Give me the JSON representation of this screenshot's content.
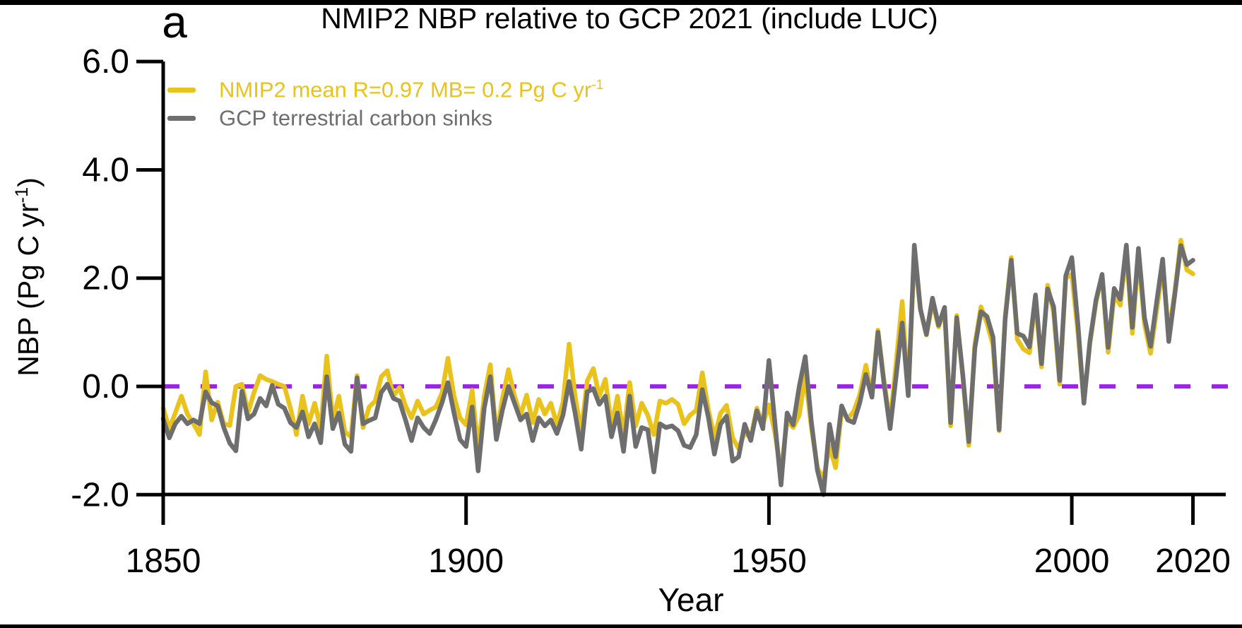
{
  "panel_label": "a",
  "legend": {
    "items": [
      {
        "label": "NMIP2 mean R=0.97 MB= 0.2 Pg C yr",
        "sup": "-1",
        "color": "#E9C31B"
      },
      {
        "label": "GCP terrestrial carbon sinks",
        "sup": "",
        "color": "#6E6E6E"
      }
    ]
  },
  "axes": {
    "ylabel_pre": "NBP (Pg C yr",
    "ylabel_sup": "-1",
    "ylabel_post": ")",
    "xlabel": "Year"
  },
  "colors": {
    "nmip2": "#E9C31B",
    "gcp": "#6E6E6E",
    "zero_line": "#A020F0",
    "axis": "#000000",
    "background": "#FFFFFF"
  },
  "chart_data": {
    "type": "line",
    "title": "NMIP2 NBP relative to GCP 2021 (include LUC)",
    "xlabel": "Year",
    "ylabel": "NBP (Pg C yr-1)",
    "ylim": [
      -2.0,
      6.0
    ],
    "xlim": [
      1850,
      2025
    ],
    "grid": false,
    "legend_position": "top-left",
    "yticks": [
      -2,
      0,
      2,
      4,
      6
    ],
    "ytick_labels": [
      "-2.0",
      "0.0",
      "2.0",
      "4.0",
      "6.0"
    ],
    "xticks": [
      1850,
      1900,
      1950,
      2000,
      2020
    ],
    "xtick_labels": [
      "1850",
      "1900",
      "1950",
      "2000",
      "2020"
    ],
    "zero_line": {
      "value": 0.0,
      "color": "#A020F0",
      "style": "dashed"
    },
    "x": [
      1850,
      1851,
      1852,
      1853,
      1854,
      1855,
      1856,
      1857,
      1858,
      1859,
      1860,
      1861,
      1862,
      1863,
      1864,
      1865,
      1866,
      1867,
      1868,
      1869,
      1870,
      1871,
      1872,
      1873,
      1874,
      1875,
      1876,
      1877,
      1878,
      1879,
      1880,
      1881,
      1882,
      1883,
      1884,
      1885,
      1886,
      1887,
      1888,
      1889,
      1890,
      1891,
      1892,
      1893,
      1894,
      1895,
      1896,
      1897,
      1898,
      1899,
      1900,
      1901,
      1902,
      1903,
      1904,
      1905,
      1906,
      1907,
      1908,
      1909,
      1910,
      1911,
      1912,
      1913,
      1914,
      1915,
      1916,
      1917,
      1918,
      1919,
      1920,
      1921,
      1922,
      1923,
      1924,
      1925,
      1926,
      1927,
      1928,
      1929,
      1930,
      1931,
      1932,
      1933,
      1934,
      1935,
      1936,
      1937,
      1938,
      1939,
      1940,
      1941,
      1942,
      1943,
      1944,
      1945,
      1946,
      1947,
      1948,
      1949,
      1950,
      1951,
      1952,
      1953,
      1954,
      1955,
      1956,
      1957,
      1958,
      1959,
      1960,
      1961,
      1962,
      1963,
      1964,
      1965,
      1966,
      1967,
      1968,
      1969,
      1970,
      1971,
      1972,
      1973,
      1974,
      1975,
      1976,
      1977,
      1978,
      1979,
      1980,
      1981,
      1982,
      1983,
      1984,
      1985,
      1986,
      1987,
      1988,
      1989,
      1990,
      1991,
      1992,
      1993,
      1994,
      1995,
      1996,
      1997,
      1998,
      1999,
      2000,
      2001,
      2002,
      2003,
      2004,
      2005,
      2006,
      2007,
      2008,
      2009,
      2010,
      2011,
      2012,
      2013,
      2014,
      2015,
      2016,
      2017,
      2018,
      2019,
      2020
    ],
    "series": [
      {
        "name": "NMIP2 mean R=0.97 MB= 0.2 Pg C yr-1",
        "color": "#E9C31B",
        "values": [
          -0.4,
          -0.78,
          -0.49,
          -0.18,
          -0.51,
          -0.69,
          -0.89,
          0.27,
          -0.62,
          -0.29,
          -0.69,
          -0.72,
          0.0,
          0.04,
          -0.49,
          -0.11,
          0.2,
          0.13,
          0.09,
          0.04,
          0.0,
          -0.4,
          -0.89,
          -0.18,
          -0.69,
          -0.31,
          -0.78,
          0.56,
          -0.62,
          -0.18,
          -0.84,
          -0.93,
          0.2,
          -0.76,
          -0.38,
          -0.27,
          0.18,
          0.29,
          -0.18,
          -0.02,
          -0.36,
          -0.58,
          -0.27,
          -0.51,
          -0.44,
          -0.38,
          -0.13,
          0.52,
          -0.18,
          -0.58,
          -0.71,
          -0.07,
          -1.16,
          -0.18,
          0.4,
          -0.93,
          -0.22,
          0.31,
          -0.18,
          -0.53,
          -0.16,
          -0.67,
          -0.24,
          -0.51,
          -0.31,
          -0.71,
          -0.29,
          0.78,
          -0.18,
          -0.85,
          0.1,
          0.33,
          -0.18,
          0.13,
          -0.73,
          -0.18,
          -0.89,
          0.07,
          -0.73,
          -0.31,
          -0.53,
          -0.89,
          -0.27,
          -0.31,
          -0.24,
          -0.33,
          -0.69,
          -0.53,
          -0.44,
          0.25,
          -0.43,
          -0.95,
          -0.5,
          -0.35,
          -0.95,
          -1.15,
          -0.85,
          -0.95,
          -0.4,
          -0.7,
          -0.34,
          -0.87,
          -1.6,
          -0.62,
          -0.76,
          -0.53,
          0.2,
          -0.75,
          -1.5,
          -1.72,
          -1.1,
          -1.5,
          -0.44,
          -0.6,
          -0.46,
          -0.15,
          0.39,
          -0.15,
          1.04,
          0.1,
          -0.67,
          0.45,
          1.57,
          -0.17,
          2.46,
          1.42,
          0.95,
          1.55,
          1.1,
          1.4,
          -0.73,
          1.31,
          0.18,
          -1.09,
          0.78,
          1.47,
          1.16,
          0.76,
          -0.82,
          1.29,
          2.38,
          0.87,
          0.69,
          0.62,
          1.6,
          0.36,
          1.87,
          1.36,
          0.04,
          2.0,
          2.07,
          1.0,
          -0.27,
          0.8,
          1.56,
          2.04,
          0.63,
          1.7,
          1.5,
          2.5,
          0.98,
          2.42,
          1.15,
          0.61,
          1.4,
          2.2,
          0.98,
          1.75,
          2.7,
          2.15,
          2.08
        ]
      },
      {
        "name": "GCP terrestrial carbon sinks",
        "color": "#6E6E6E",
        "values": [
          -0.6,
          -0.95,
          -0.69,
          -0.55,
          -0.69,
          -0.62,
          -0.69,
          -0.1,
          -0.3,
          -0.36,
          -0.76,
          -1.05,
          -1.19,
          -0.09,
          -0.6,
          -0.51,
          -0.22,
          -0.36,
          0.02,
          -0.33,
          -0.4,
          -0.67,
          -0.76,
          -0.47,
          -0.93,
          -0.69,
          -1.04,
          0.18,
          -0.78,
          -0.49,
          -1.07,
          -1.2,
          0.16,
          -0.69,
          -0.63,
          -0.58,
          -0.11,
          0.04,
          -0.22,
          -0.27,
          -0.62,
          -1.0,
          -0.58,
          -0.76,
          -0.87,
          -0.62,
          -0.31,
          0.07,
          -0.49,
          -0.98,
          -1.11,
          -0.38,
          -1.56,
          -0.4,
          0.18,
          -0.98,
          -0.44,
          0.0,
          -0.31,
          -0.62,
          -0.51,
          -1.0,
          -0.58,
          -0.73,
          -0.62,
          -0.87,
          -0.53,
          0.09,
          -0.49,
          -1.16,
          -0.1,
          -0.04,
          -0.33,
          -0.18,
          -0.93,
          -0.49,
          -1.2,
          -0.18,
          -1.11,
          -0.76,
          -0.8,
          -1.58,
          -0.69,
          -0.76,
          -0.73,
          -0.82,
          -1.09,
          -1.13,
          -0.89,
          -0.06,
          -0.57,
          -1.25,
          -0.7,
          -0.55,
          -1.38,
          -1.3,
          -0.7,
          -1.0,
          -0.45,
          -0.78,
          0.48,
          -0.69,
          -1.82,
          -0.49,
          -0.71,
          0.0,
          0.55,
          -0.65,
          -1.55,
          -2.0,
          -0.7,
          -1.3,
          -0.36,
          -0.62,
          -0.67,
          -0.3,
          0.22,
          -0.2,
          1.0,
          0.05,
          -0.78,
          0.2,
          1.17,
          -0.17,
          2.61,
          1.43,
          0.96,
          1.63,
          1.13,
          1.46,
          -0.67,
          1.27,
          0.22,
          -1.02,
          0.71,
          1.38,
          1.29,
          0.91,
          -0.8,
          1.24,
          2.33,
          0.98,
          0.93,
          0.73,
          1.69,
          0.42,
          1.8,
          1.47,
          0.11,
          2.04,
          2.38,
          1.16,
          -0.31,
          0.84,
          1.6,
          2.07,
          0.72,
          1.81,
          1.61,
          2.61,
          1.09,
          2.55,
          1.27,
          0.74,
          1.55,
          2.35,
          0.83,
          1.7,
          2.6,
          2.25,
          2.33
        ]
      }
    ]
  }
}
